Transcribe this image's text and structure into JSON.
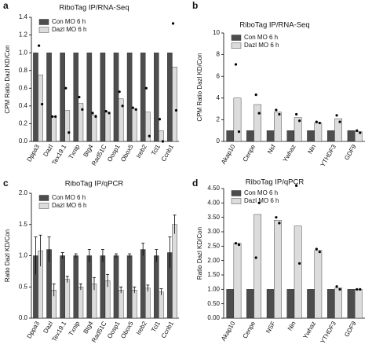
{
  "chart_data": [
    {
      "type": "bar",
      "label": "a",
      "title": "RiboTag IP/RNA-Seq",
      "y_label": "CPM Ratio Dazl KD/Con",
      "categories": [
        "Dppa3",
        "Dazl",
        "Tex19.1",
        "Txnip",
        "Btg4",
        "Rad51C",
        "Oosp1",
        "Obox5",
        "Ireb2",
        "Tcl1",
        "Ccnb1"
      ],
      "series": [
        {
          "name": "Con MO 6 h",
          "color": "#4d4d4d",
          "values": [
            1,
            1,
            1,
            1,
            1,
            1,
            1,
            1,
            1,
            1,
            1
          ]
        },
        {
          "name": "Dazl MO 6 h",
          "color": "#dcdcdc",
          "values": [
            0.75,
            0.28,
            0.35,
            0.43,
            0.3,
            0.33,
            0.48,
            0.37,
            0.33,
            0.12,
            0.84
          ],
          "points": [
            [
              1.08,
              0.42
            ],
            [
              0.28,
              0.28
            ],
            [
              0.6,
              0.1
            ],
            [
              0.5,
              0.36
            ],
            [
              0.32,
              0.28
            ],
            [
              0.34,
              0.32
            ],
            [
              0.56,
              0.4
            ],
            [
              0.38,
              0.36
            ],
            [
              0.6,
              0.06
            ],
            [
              0.25,
              0.0
            ],
            [
              1.33,
              0.35
            ]
          ]
        }
      ],
      "ylim": [
        0,
        1.4
      ],
      "yticks": [
        {
          "value": 0,
          "label": "0.0"
        },
        {
          "value": 0.2,
          "label": "0.2"
        },
        {
          "value": 0.4,
          "label": "0.4"
        },
        {
          "value": 0.6,
          "label": "0.6"
        },
        {
          "value": 0.8,
          "label": "0.8"
        },
        {
          "value": 1,
          "label": "1.0"
        },
        {
          "value": 1.2,
          "label": "1.2"
        },
        {
          "value": 1.4,
          "label": "1.4"
        }
      ],
      "legend": "top-left"
    },
    {
      "type": "bar",
      "label": "b",
      "title": "RiboTag IP/RNA-Seq",
      "y_label": "CPM Ratio Dazl KD/Con",
      "categories": [
        "Akap10",
        "Cenpe",
        "Nsf",
        "Ywhaz",
        "Nin",
        "YTHDF3",
        "GDF9"
      ],
      "series": [
        {
          "name": "Con MO 6 h",
          "color": "#4d4d4d",
          "values": [
            1,
            1,
            1,
            1,
            1,
            1,
            1
          ]
        },
        {
          "name": "Dazl MO 6 h",
          "color": "#dcdcdc",
          "values": [
            4.0,
            3.4,
            2.7,
            2.2,
            1.7,
            2.1,
            0.9
          ],
          "points": [
            [
              7.1,
              0.9
            ],
            [
              4.3,
              2.6
            ],
            [
              2.9,
              2.5
            ],
            [
              2.5,
              1.9
            ],
            [
              1.8,
              1.7
            ],
            [
              2.4,
              1.8
            ],
            [
              1.0,
              0.8
            ]
          ]
        }
      ],
      "ylim": [
        0,
        10
      ],
      "yticks": [
        0,
        2,
        4,
        6,
        8,
        10
      ],
      "legend": "top-left"
    },
    {
      "type": "bar",
      "label": "c",
      "title": "RiboTag IP/qPCR",
      "y_label": "Ratio Dazl KD/Con",
      "categories": [
        "Dppa3",
        "Dazl",
        "Tex19.1",
        "Txnip",
        "Btg4",
        "Rad51C",
        "Oosp1",
        "Obox5",
        "Ireb2",
        "Tcl1",
        "Ccnb1"
      ],
      "series": [
        {
          "name": "Con MO 6 h",
          "color": "#4d4d4d",
          "values": [
            1.0,
            1.1,
            1.0,
            1.0,
            1.0,
            1.0,
            1.0,
            1.0,
            1.1,
            1.0,
            1.05
          ],
          "errors": [
            0.3,
            0.2,
            0.05,
            0.03,
            0.1,
            0.1,
            0.03,
            0.03,
            0.1,
            0.1,
            0.25
          ]
        },
        {
          "name": "Dazl MO 6 h",
          "color": "#dcdcdc",
          "values": [
            1.08,
            0.45,
            0.62,
            0.5,
            0.55,
            0.6,
            0.45,
            0.45,
            0.48,
            0.42,
            1.5
          ],
          "errors": [
            0.25,
            0.1,
            0.05,
            0.05,
            0.1,
            0.1,
            0.05,
            0.05,
            0.05,
            0.05,
            0.15
          ]
        }
      ],
      "ylim": [
        0,
        2
      ],
      "yticks": [
        {
          "value": 0,
          "label": "0.0"
        },
        {
          "value": 0.5,
          "label": "0.5"
        },
        {
          "value": 1,
          "label": "1.0"
        },
        {
          "value": 1.5,
          "label": "1.5"
        },
        {
          "value": 2,
          "label": "2.0"
        }
      ],
      "legend": "top-left"
    },
    {
      "type": "bar",
      "label": "d",
      "title": "RiboTag IP/qPCR",
      "y_label": "Ratio Dazl KD/Con",
      "categories": [
        "Akap10",
        "Cenpe",
        "NSF",
        "Nin",
        "Ywhaz",
        "YTHDF3",
        "GDF9"
      ],
      "series": [
        {
          "name": "Con MO 6 h",
          "color": "#4d4d4d",
          "values": [
            1,
            1,
            1,
            1,
            1,
            1,
            1
          ]
        },
        {
          "name": "Dazl MO 6 h",
          "color": "#dcdcdc",
          "values": [
            2.6,
            3.6,
            3.4,
            3.2,
            2.35,
            1.05,
            1.0
          ],
          "points": [
            [
              2.6,
              2.55
            ],
            [
              2.1,
              4.0
            ],
            [
              3.5,
              3.3
            ],
            [
              4.6,
              1.9
            ],
            [
              2.4,
              2.3
            ],
            [
              1.1,
              1.0
            ],
            [
              1.0,
              1.0
            ]
          ]
        }
      ],
      "ylim": [
        0,
        4.5
      ],
      "yticks": [
        {
          "value": 0,
          "label": "0.00"
        },
        {
          "value": 0.5,
          "label": "0.50"
        },
        {
          "value": 1,
          "label": "1.00"
        },
        {
          "value": 1.5,
          "label": "1.50"
        },
        {
          "value": 2,
          "label": "2.00"
        },
        {
          "value": 2.5,
          "label": "2.50"
        },
        {
          "value": 3,
          "label": "3.00"
        },
        {
          "value": 3.5,
          "label": "3.50"
        },
        {
          "value": 4,
          "label": "4.00"
        },
        {
          "value": 4.5,
          "label": "4.50"
        }
      ],
      "legend": "top-left"
    }
  ]
}
